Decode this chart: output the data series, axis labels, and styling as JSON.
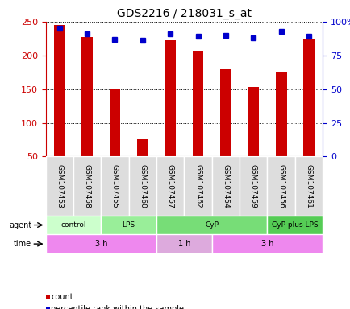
{
  "title": "GDS2216 / 218031_s_at",
  "samples": [
    "GSM107453",
    "GSM107458",
    "GSM107455",
    "GSM107460",
    "GSM107457",
    "GSM107462",
    "GSM107454",
    "GSM107459",
    "GSM107456",
    "GSM107461"
  ],
  "counts": [
    245,
    227,
    150,
    75,
    223,
    207,
    180,
    153,
    175,
    224
  ],
  "percentile_ranks": [
    95,
    91,
    87,
    86,
    91,
    89,
    90,
    88,
    93,
    89
  ],
  "bar_color": "#cc0000",
  "dot_color": "#0000cc",
  "ylim_left": [
    50,
    250
  ],
  "yticks_left": [
    50,
    100,
    150,
    200,
    250
  ],
  "ylim_right": [
    0,
    100
  ],
  "yticks_right": [
    0,
    25,
    50,
    75,
    100
  ],
  "agent_groups": [
    {
      "label": "control",
      "start": 0,
      "end": 2,
      "color": "#ccffcc"
    },
    {
      "label": "LPS",
      "start": 2,
      "end": 4,
      "color": "#99ee99"
    },
    {
      "label": "CyP",
      "start": 4,
      "end": 8,
      "color": "#77dd77"
    },
    {
      "label": "CyP plus LPS",
      "start": 8,
      "end": 10,
      "color": "#55cc55"
    }
  ],
  "time_groups": [
    {
      "label": "3 h",
      "start": 0,
      "end": 4,
      "color": "#ee88ee"
    },
    {
      "label": "1 h",
      "start": 4,
      "end": 6,
      "color": "#ddaadd"
    },
    {
      "label": "3 h",
      "start": 6,
      "end": 10,
      "color": "#ee88ee"
    }
  ],
  "legend_items": [
    {
      "label": "count",
      "color": "#cc0000"
    },
    {
      "label": "percentile rank within the sample",
      "color": "#0000cc"
    }
  ],
  "background_color": "#ffffff",
  "grid_color": "#000000",
  "left_axis_color": "#cc0000",
  "right_axis_color": "#0000cc"
}
